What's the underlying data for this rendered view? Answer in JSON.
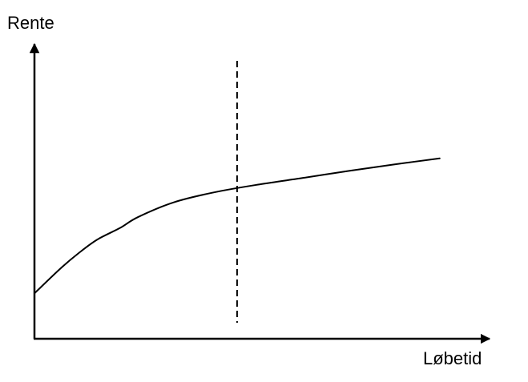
{
  "chart_data": {
    "type": "line",
    "xlabel": "Løbetid",
    "ylabel": "Rente",
    "ticks": false,
    "grid": false,
    "legend": "none",
    "series": [
      {
        "x": [
          0,
          6,
          10,
          14,
          19,
          23,
          31,
          40,
          50,
          60,
          70,
          80,
          90
        ],
        "y": [
          15,
          23.5,
          28.5,
          32.8,
          36.6,
          40.2,
          45.1,
          48.4,
          51,
          53.2,
          55.5,
          57.6,
          59.6
        ]
      }
    ],
    "reference_line": {
      "x": 45,
      "style": "dashed"
    },
    "xlim": [
      0,
      100
    ],
    "ylim": [
      0,
      100
    ],
    "colors": {
      "curve": "#000000",
      "axes": "#000000",
      "reference": "#000000"
    }
  }
}
